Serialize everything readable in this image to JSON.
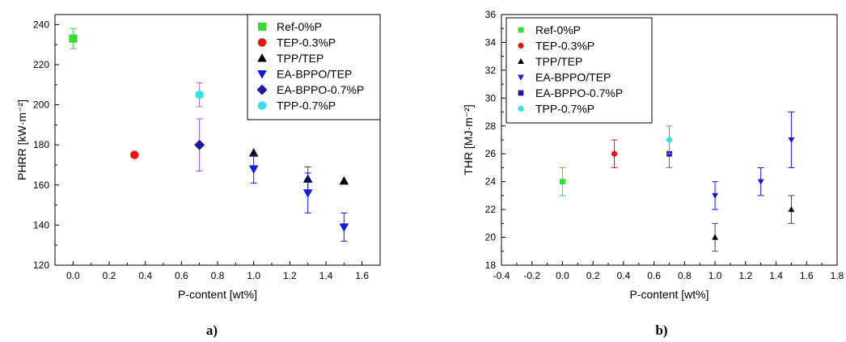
{
  "chart_data": [
    {
      "type": "scatter",
      "panel_label": "a)",
      "xlabel": "P-content [wt%]",
      "ylabel": "PHRR [kW·m⁻²]",
      "xlim": [
        -0.1,
        1.7
      ],
      "ylim": [
        120,
        245
      ],
      "xticks": [
        0.0,
        0.2,
        0.4,
        0.6,
        0.8,
        1.0,
        1.2,
        1.4,
        1.6
      ],
      "xtick_labels": [
        "0.0",
        "0.2",
        "0.4",
        "0.6",
        "0.8",
        "1.0",
        "1.2",
        "1.4",
        "1.6"
      ],
      "yticks": [
        120,
        140,
        160,
        180,
        200,
        220,
        240
      ],
      "ytick_labels": [
        "120",
        "140",
        "160",
        "180",
        "200",
        "220",
        "240"
      ],
      "grid": false,
      "legend_position": "top-right",
      "series": [
        {
          "name": "Ref-0%P",
          "marker": "square",
          "color": "#33dd33",
          "err_color": "#33dd33",
          "points": [
            {
              "x": 0.0,
              "y": 233,
              "err": 5
            }
          ]
        },
        {
          "name": "TEP-0.3%P",
          "marker": "circle",
          "color": "#ee1111",
          "err_color": "#ee1111",
          "points": [
            {
              "x": 0.34,
              "y": 175,
              "err": 0
            }
          ]
        },
        {
          "name": "TPP/TEP",
          "marker": "triangle-up",
          "color": "#000000",
          "err_color": "#444444",
          "points": [
            {
              "x": 1.0,
              "y": 176,
              "err": 0
            },
            {
              "x": 1.3,
              "y": 163,
              "err": 6
            },
            {
              "x": 1.5,
              "y": 162,
              "err": 0
            }
          ]
        },
        {
          "name": "EA-BPPO/TEP",
          "marker": "triangle-down",
          "color": "#1515ee",
          "err_color": "#1515ee",
          "points": [
            {
              "x": 1.0,
              "y": 168,
              "err": 7
            },
            {
              "x": 1.3,
              "y": 156,
              "err": 10
            },
            {
              "x": 1.5,
              "y": 139,
              "err": 7
            }
          ]
        },
        {
          "name": "EA-BPPO-0.7%P",
          "marker": "diamond",
          "color": "#1a1aa0",
          "err_color": "#9a4fc2",
          "points": [
            {
              "x": 0.7,
              "y": 180,
              "err": 13
            }
          ]
        },
        {
          "name": "TPP-0.7%P",
          "marker": "hexagon",
          "color": "#33e0ee",
          "err_color": "#c060c0",
          "points": [
            {
              "x": 0.7,
              "y": 205,
              "err": 6
            }
          ]
        }
      ]
    },
    {
      "type": "scatter",
      "panel_label": "b)",
      "xlabel": "P-content [wt%]",
      "ylabel": "THR [MJ·m⁻²]",
      "xlim": [
        -0.4,
        1.8
      ],
      "ylim": [
        18,
        36
      ],
      "xticks": [
        -0.4,
        -0.2,
        0.0,
        0.2,
        0.4,
        0.6,
        0.8,
        1.0,
        1.2,
        1.4,
        1.6,
        1.8
      ],
      "xtick_labels": [
        "-0.4",
        "-0.2",
        "0.0",
        "0.2",
        "0.4",
        "0.6",
        "0.8",
        "1.0",
        "1.2",
        "1.4",
        "1.6",
        "1.8"
      ],
      "yticks": [
        18,
        20,
        22,
        24,
        26,
        28,
        30,
        32,
        34,
        36
      ],
      "ytick_labels": [
        "18",
        "20",
        "22",
        "24",
        "26",
        "28",
        "30",
        "32",
        "34",
        "36"
      ],
      "grid": false,
      "legend_position": "top-left",
      "series": [
        {
          "name": "Ref-0%P",
          "marker": "square",
          "color": "#33dd33",
          "err_color": "#33dd33",
          "points": [
            {
              "x": 0.0,
              "y": 24,
              "err": 1
            }
          ]
        },
        {
          "name": "TEP-0.3%P",
          "marker": "circle",
          "color": "#ee1111",
          "err_color": "#ee1111",
          "points": [
            {
              "x": 0.34,
              "y": 26,
              "err": 1
            }
          ]
        },
        {
          "name": "TPP/TEP",
          "marker": "triangle-up",
          "color": "#000000",
          "err_color": "#444444",
          "points": [
            {
              "x": 1.0,
              "y": 20,
              "err": 1
            },
            {
              "x": 1.5,
              "y": 22,
              "err": 1
            }
          ]
        },
        {
          "name": "EA-BPPO/TEP",
          "marker": "triangle-down",
          "color": "#1515ee",
          "err_color": "#1515ee",
          "points": [
            {
              "x": 1.0,
              "y": 23,
              "err": 1
            },
            {
              "x": 1.3,
              "y": 24,
              "err": 1
            },
            {
              "x": 1.5,
              "y": 27,
              "err": 2
            }
          ]
        },
        {
          "name": "EA-BPPO-0.7%P",
          "marker": "square",
          "color": "#1a1aa0",
          "err_color": "#9a4fc2",
          "points": [
            {
              "x": 0.7,
              "y": 26,
              "err": 1
            }
          ]
        },
        {
          "name": "TPP-0.7%P",
          "marker": "circle",
          "color": "#33e0ee",
          "err_color": "#c060c0",
          "points": [
            {
              "x": 0.7,
              "y": 27,
              "err": 1
            }
          ]
        }
      ]
    }
  ]
}
